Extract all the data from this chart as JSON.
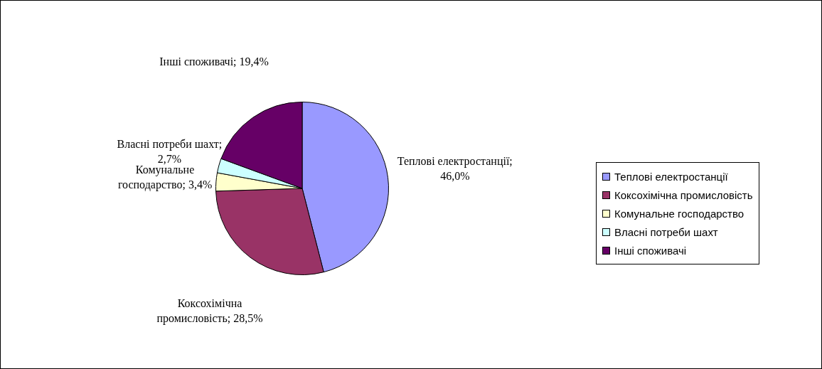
{
  "chart_data": {
    "type": "pie",
    "categories": [
      "Теплові електростанції",
      "Коксохімічна промисловість",
      "Комунальне господарство",
      "Власні потреби шахт",
      "Інші споживачі"
    ],
    "values": [
      46.0,
      28.5,
      3.4,
      2.7,
      19.4
    ],
    "colors": [
      "#9999ff",
      "#993366",
      "#ffffcc",
      "#ccffff",
      "#660066"
    ],
    "value_labels": [
      "Теплові електростанції; 46,0%",
      "Коксохімічна промисловість; 28,5%",
      "Комунальне господарство; 3,4%",
      "Власні потреби шахт; 2,7%",
      "Інші споживачі; 19,4%"
    ],
    "legend": "right"
  }
}
